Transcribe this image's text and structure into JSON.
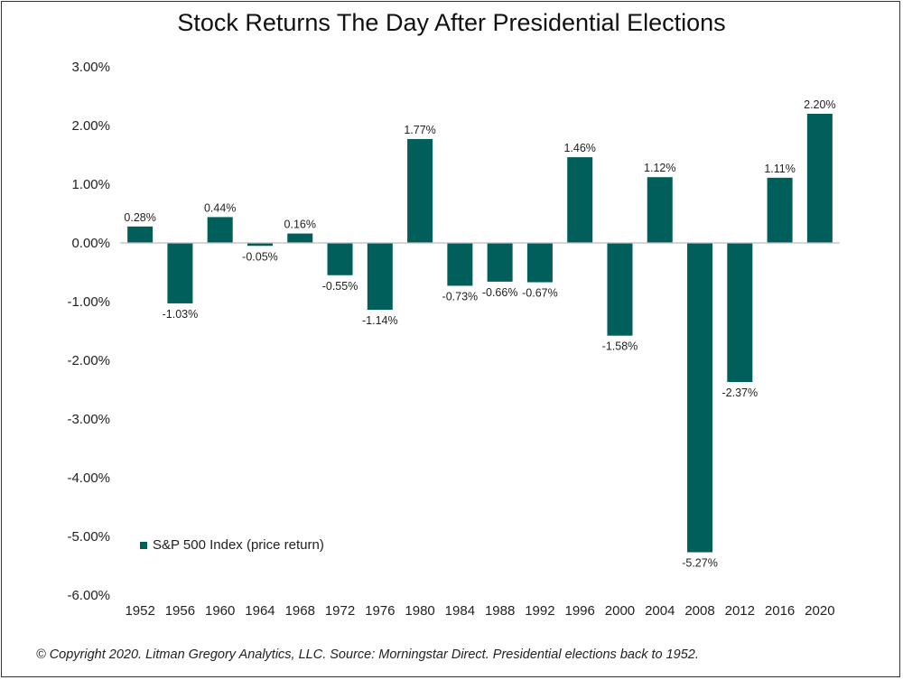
{
  "chart_data": {
    "type": "bar",
    "title": "Stock Returns The Day After Presidential Elections",
    "categories": [
      "1952",
      "1956",
      "1960",
      "1964",
      "1968",
      "1972",
      "1976",
      "1980",
      "1984",
      "1988",
      "1992",
      "1996",
      "2000",
      "2004",
      "2008",
      "2012",
      "2016",
      "2020"
    ],
    "series": [
      {
        "name": "S&P 500 Index (price return)",
        "values": [
          0.28,
          -1.03,
          0.44,
          -0.05,
          0.16,
          -0.55,
          -1.14,
          1.77,
          -0.73,
          -0.66,
          -0.67,
          1.46,
          -1.58,
          1.12,
          -5.27,
          -2.37,
          1.11,
          2.2
        ],
        "labels": [
          "0.28%",
          "-1.03%",
          "0.44%",
          "-0.05%",
          "0.16%",
          "-0.55%",
          "-1.14%",
          "1.77%",
          "-0.73%",
          "-0.66%",
          "-0.67%",
          "1.46%",
          "-1.58%",
          "1.12%",
          "-5.27%",
          "-2.37%",
          "1.11%",
          "2.20%"
        ],
        "color": "#005F5A"
      }
    ],
    "y_ticks": [
      3,
      2,
      1,
      0,
      -1,
      -2,
      -3,
      -4,
      -5,
      -6
    ],
    "y_tick_labels": [
      "3.00%",
      "2.00%",
      "1.00%",
      "0.00%",
      "-1.00%",
      "-2.00%",
      "-3.00%",
      "-4.00%",
      "-5.00%",
      "-6.00%"
    ],
    "ylim": [
      -6,
      3
    ],
    "grid": false,
    "legend_position": "bottom-left",
    "xlabel": "",
    "ylabel": ""
  },
  "footer": "© Copyright 2020. Litman Gregory Analytics, LLC. Source: Morningstar Direct. Presidential elections back to 1952."
}
